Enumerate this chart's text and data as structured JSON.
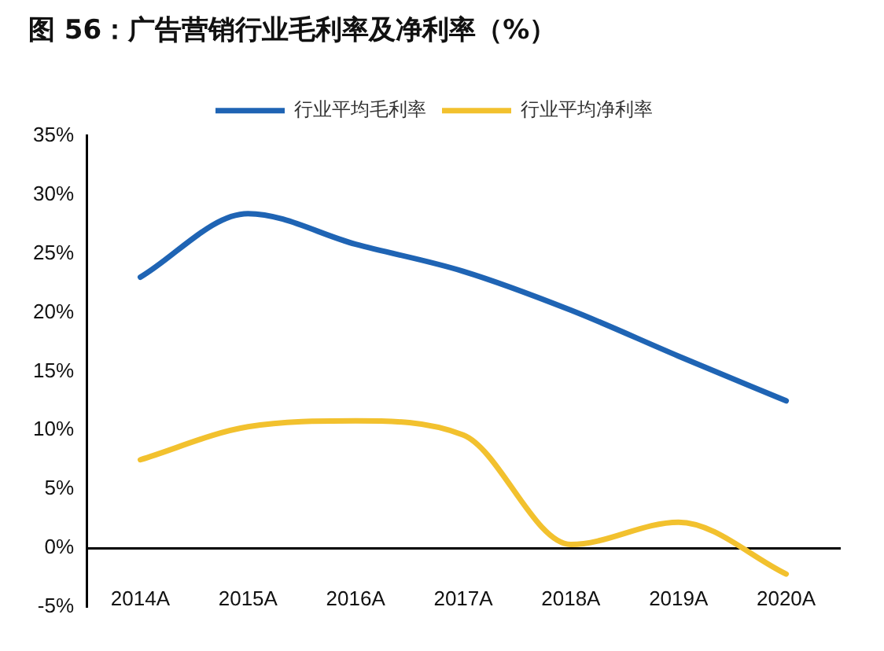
{
  "chart_data": {
    "type": "line",
    "title": "图 56：广告营销行业毛利率及净利率（%）",
    "categories": [
      "2014A",
      "2015A",
      "2016A",
      "2017A",
      "2018A",
      "2019A",
      "2020A"
    ],
    "series": [
      {
        "name": "行业平均毛利率",
        "color": "#1f64b4",
        "values": [
          23,
          28.4,
          25.8,
          23.5,
          20.2,
          16.3,
          12.5
        ]
      },
      {
        "name": "行业平均净利率",
        "color": "#f2c12e",
        "values": [
          7.5,
          10.3,
          10.8,
          9.6,
          0.3,
          2.2,
          -2.2
        ]
      }
    ],
    "ylim": [
      -5,
      35
    ],
    "yticks": [
      {
        "value": -5,
        "label": "-5%"
      },
      {
        "value": 0,
        "label": "0%"
      },
      {
        "value": 5,
        "label": "5%"
      },
      {
        "value": 10,
        "label": "10%"
      },
      {
        "value": 15,
        "label": "15%"
      },
      {
        "value": 20,
        "label": "20%"
      },
      {
        "value": 25,
        "label": "25%"
      },
      {
        "value": 30,
        "label": "30%"
      },
      {
        "value": 35,
        "label": "35%"
      }
    ],
    "grid": false,
    "legend": "top",
    "marker": "none",
    "line_style": "solid"
  }
}
